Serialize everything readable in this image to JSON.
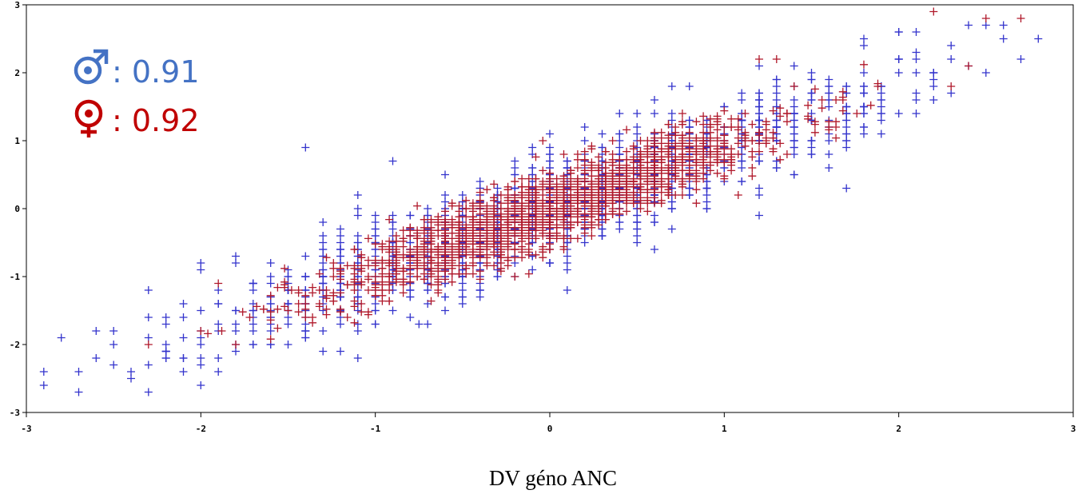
{
  "chart_data": {
    "type": "scatter",
    "title": "",
    "xlabel": "DV géno ANC",
    "ylabel": "",
    "xlim": [
      -3,
      3
    ],
    "ylim": [
      -3,
      3
    ],
    "xticks": [
      -3,
      -2,
      -1,
      0,
      1,
      2,
      3
    ],
    "yticks": [
      -3,
      -2,
      -1,
      0,
      1,
      2,
      3
    ],
    "x_tick_labels": [
      "-3",
      "-2",
      "-1",
      "0",
      "1",
      "2",
      "3"
    ],
    "y_tick_labels": [
      "-3",
      "-2",
      "-1",
      "0",
      "1",
      "2",
      "3"
    ],
    "grid": false,
    "legend_placement": "top-left",
    "marker": "plus",
    "series": [
      {
        "symbol": "male",
        "annotation": ": 0.91",
        "color": "#3333cc",
        "text_color": "#4472c4",
        "x_sd": 0.95,
        "slope": 0.91,
        "noise_sd": 0.38,
        "x_step": 0.1,
        "y_step": 0.1,
        "n": 1600,
        "points": [
          [
            -2.9,
            -2.4
          ],
          [
            -2.9,
            -2.6
          ],
          [
            -2.8,
            -1.9
          ],
          [
            -2.7,
            -2.4
          ],
          [
            -2.6,
            -1.8
          ],
          [
            -2.5,
            -2.3
          ],
          [
            -2.4,
            -2.5
          ],
          [
            -2.3,
            -2.7
          ],
          [
            -2.3,
            -1.2
          ],
          [
            -2.3,
            -1.6
          ],
          [
            -1.4,
            0.9
          ],
          [
            -0.9,
            0.7
          ],
          [
            -1.1,
            -2.2
          ],
          [
            -1.2,
            -2.1
          ],
          [
            -0.75,
            -1.7
          ],
          [
            2.8,
            2.5
          ],
          [
            2.5,
            2.7
          ],
          [
            2.5,
            2.0
          ],
          [
            2.0,
            2.6
          ],
          [
            1.2,
            -0.1
          ],
          [
            0.1,
            -0.9
          ],
          [
            2.3,
            1.7
          ],
          [
            2.1,
            1.4
          ]
        ]
      },
      {
        "symbol": "female",
        "annotation": ": 0.92",
        "color": "#b0182a",
        "text_color": "#c00000",
        "x_sd": 0.6,
        "slope": 0.92,
        "noise_sd": 0.25,
        "x_step": 0.04,
        "y_step": 0.04,
        "n": 2200,
        "points": [
          [
            2.2,
            2.9
          ],
          [
            2.7,
            2.8
          ],
          [
            2.5,
            2.8
          ],
          [
            2.3,
            1.8
          ],
          [
            2.4,
            2.1
          ],
          [
            -2.3,
            -2.0
          ],
          [
            -1.9,
            -1.1
          ],
          [
            -2.0,
            -1.8
          ],
          [
            -1.8,
            -2.0
          ],
          [
            -1.5,
            -1.5
          ],
          [
            -1.4,
            -1.6
          ],
          [
            1.2,
            2.2
          ],
          [
            1.3,
            2.2
          ]
        ]
      }
    ]
  }
}
